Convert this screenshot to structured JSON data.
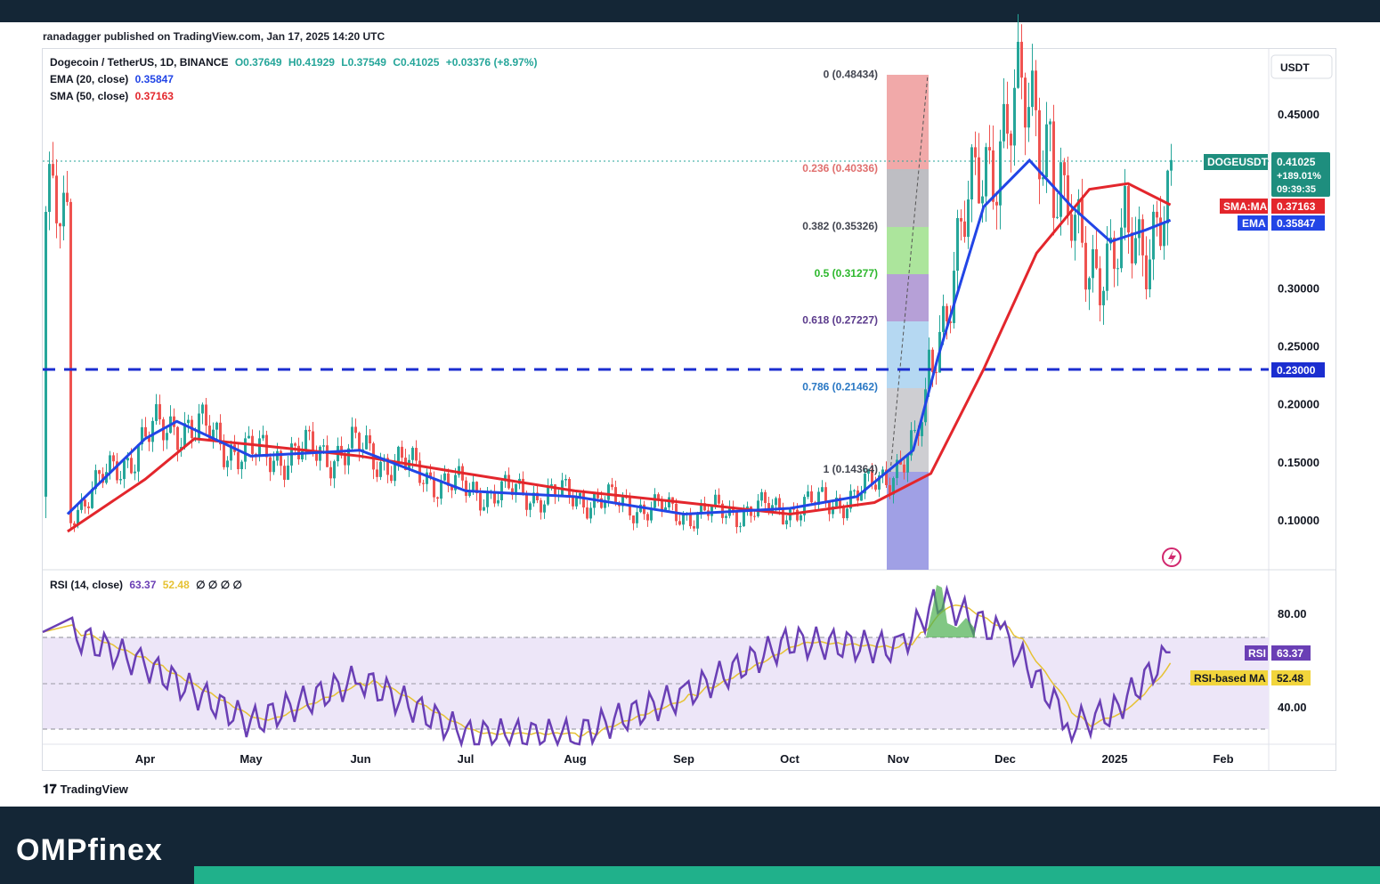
{
  "publisher": "ranadagger published on TradingView.com, Jan 17, 2025 14:20 UTC",
  "legend": {
    "symbol": "Dogecoin / TetherUS, 1D, BINANCE",
    "open": "O0.37649",
    "high": "H0.41929",
    "low": "L0.37549",
    "close": "C0.41025",
    "change": "+0.03376 (+8.97%)",
    "ema_label": "EMA (20, close)",
    "ema_value": "0.35847",
    "sma_label": "SMA (50, close)",
    "sma_value": "0.37163",
    "rsi_label": "RSI (14, close)",
    "rsi_value": "63.37",
    "rsi_ma_value": "52.48",
    "rsi_extras": "∅ ∅ ∅ ∅"
  },
  "currency": "USDT",
  "branding": {
    "tradingview": "TradingView",
    "site": "OMPfinex"
  },
  "tags": {
    "symbol": "DOGEUSDT",
    "price": "0.41025",
    "pct": "+189.01%",
    "countdown": "09:39:35",
    "sma": "SMA:MA",
    "sma_val": "0.37163",
    "ema": "EMA",
    "ema_val": "0.35847",
    "support": "0.23000",
    "rsi": "RSI",
    "rsi_val": "63.37",
    "rsi_ma": "RSI-based MA",
    "rsi_ma_val": "52.48"
  },
  "fib_labels": [
    {
      "level": "0",
      "price": "(0.48434)",
      "color": "#434651"
    },
    {
      "level": "0.236",
      "price": "(0.40336)",
      "color": "#e0706f"
    },
    {
      "level": "0.382",
      "price": "(0.35326)",
      "color": "#434651"
    },
    {
      "level": "0.5",
      "price": "(0.31277)",
      "color": "#2db82d"
    },
    {
      "level": "0.618",
      "price": "(0.27227)",
      "color": "#5b3b8c"
    },
    {
      "level": "0.786",
      "price": "(0.21462)",
      "color": "#2a78c4"
    },
    {
      "level": "1",
      "price": "(0.14364)",
      "color": "#434651"
    }
  ],
  "colors": {
    "ema": "#2245e6",
    "sma": "#e3262c",
    "support": "#1b2ed0",
    "rsi": "#6a3fb5",
    "rsi_ma": "#e6c233",
    "up": "#26a69a",
    "down": "#ef5350"
  },
  "chart_data": {
    "type": "line",
    "title": "Dogecoin / TetherUS, 1D, BINANCE",
    "price_axis": {
      "ticks": [
        "0.45000",
        "0.30000",
        "0.25000",
        "0.20000",
        "0.15000",
        "0.10000"
      ],
      "ylim": [
        0.05,
        0.5
      ]
    },
    "x_ticks": [
      "Apr",
      "May",
      "Jun",
      "Jul",
      "Aug",
      "Sep",
      "Oct",
      "Nov",
      "Dec",
      "2025",
      "Feb"
    ],
    "series": [
      {
        "name": "EMA (20, close)",
        "x": [
          "Mar 10",
          "Apr 1",
          "Apr 10",
          "May 1",
          "Jun 1",
          "Jul 1",
          "Aug 1",
          "Sep 1",
          "Oct 1",
          "Oct 20",
          "Nov 5",
          "Nov 12",
          "Nov 25",
          "Dec 8",
          "Dec 20",
          "Dec 31",
          "Jan 10",
          "Jan 17"
        ],
        "y": [
          0.105,
          0.17,
          0.185,
          0.155,
          0.16,
          0.125,
          0.12,
          0.105,
          0.11,
          0.12,
          0.16,
          0.24,
          0.37,
          0.41,
          0.37,
          0.34,
          0.35,
          0.35847
        ]
      },
      {
        "name": "SMA (50, close)",
        "x": [
          "Mar 10",
          "Apr 1",
          "Apr 15",
          "May 1",
          "Jun 1",
          "Jul 1",
          "Aug 1",
          "Sep 1",
          "Oct 1",
          "Oct 25",
          "Nov 10",
          "Nov 25",
          "Dec 10",
          "Dec 25",
          "Jan 5",
          "Jan 17"
        ],
        "y": [
          0.09,
          0.135,
          0.17,
          0.165,
          0.155,
          0.14,
          0.125,
          0.115,
          0.105,
          0.115,
          0.14,
          0.23,
          0.33,
          0.385,
          0.39,
          0.37163
        ]
      },
      {
        "name": "RSI (14, close)",
        "x": [
          "Mar 10",
          "Apr 1",
          "May 1",
          "Jun 1",
          "Jul 1",
          "Aug 1",
          "Sep 1",
          "Oct 1",
          "Nov 1",
          "Nov 12",
          "Dec 1",
          "Dec 20",
          "Jan 1",
          "Jan 17"
        ],
        "y": [
          72,
          58,
          33,
          52,
          28,
          28,
          45,
          68,
          65,
          86,
          70,
          32,
          38,
          63.37
        ]
      }
    ],
    "support_level": 0.23,
    "rsi_axis": {
      "ticks": [
        "80.00",
        "40.00"
      ],
      "bands": [
        30,
        50,
        70
      ]
    },
    "fibonacci": [
      {
        "level": 0,
        "price": 0.48434
      },
      {
        "level": 0.236,
        "price": 0.40336
      },
      {
        "level": 0.382,
        "price": 0.35326
      },
      {
        "level": 0.5,
        "price": 0.31277
      },
      {
        "level": 0.618,
        "price": 0.27227
      },
      {
        "level": 0.786,
        "price": 0.21462
      },
      {
        "level": 1,
        "price": 0.14364
      }
    ]
  }
}
